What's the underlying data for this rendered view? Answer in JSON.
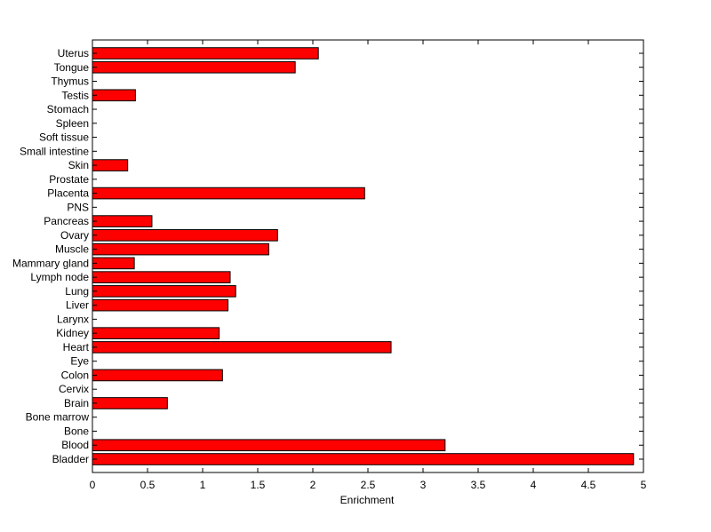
{
  "chart_data": {
    "type": "bar",
    "orientation": "horizontal",
    "xlabel": "Enrichment",
    "xlim": [
      0,
      5
    ],
    "xticks": [
      "0",
      "0.5",
      "1",
      "1.5",
      "2",
      "2.5",
      "3",
      "3.5",
      "4",
      "4.5",
      "5"
    ],
    "bar_color": "#ff0000",
    "categories": [
      "Bladder",
      "Blood",
      "Bone",
      "Bone marrow",
      "Brain",
      "Cervix",
      "Colon",
      "Eye",
      "Heart",
      "Kidney",
      "Larynx",
      "Liver",
      "Lung",
      "Lymph node",
      "Mammary gland",
      "Muscle",
      "Ovary",
      "Pancreas",
      "PNS",
      "Placenta",
      "Prostate",
      "Skin",
      "Small intestine",
      "Soft tissue",
      "Spleen",
      "Stomach",
      "Testis",
      "Thymus",
      "Tongue",
      "Uterus"
    ],
    "values": [
      4.91,
      3.2,
      0,
      0,
      0.68,
      0,
      1.18,
      0,
      2.71,
      1.15,
      0,
      1.23,
      1.3,
      1.25,
      0.38,
      1.6,
      1.68,
      0.54,
      0,
      2.47,
      0,
      0.32,
      0,
      0,
      0,
      0,
      0.39,
      0,
      1.84,
      2.05
    ]
  }
}
